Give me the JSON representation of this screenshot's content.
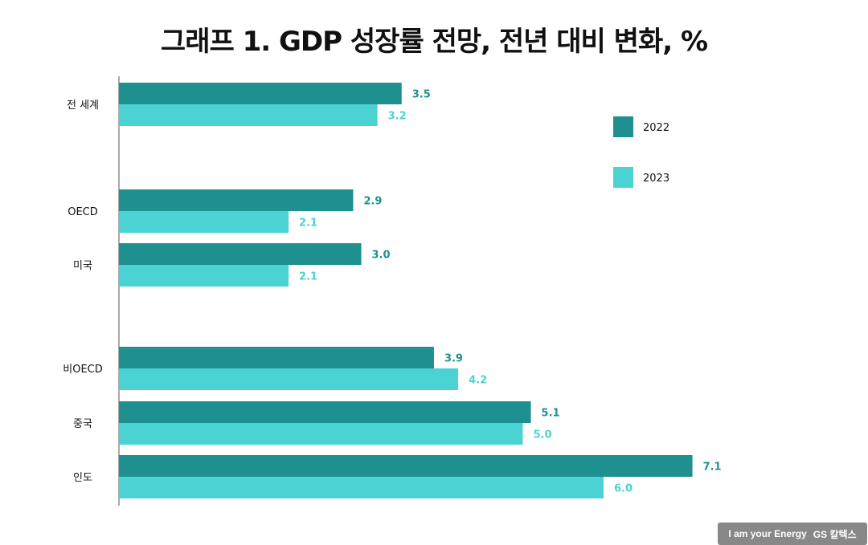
{
  "chart_data": {
    "type": "bar",
    "orientation": "horizontal",
    "title": "그래프 1. GDP 성장률 전망, 전년 대비 변화, %",
    "categories": [
      "전 세계",
      "OECD",
      "미국",
      "비OECD",
      "중국",
      "인도"
    ],
    "series": [
      {
        "name": "2022",
        "values": [
          3.5,
          2.9,
          3.0,
          3.9,
          5.1,
          7.1
        ],
        "labels": [
          "3.5",
          "2.9",
          "3.0",
          "3.9",
          "5.1",
          "7.1"
        ],
        "color": "#1f9090"
      },
      {
        "name": "2023",
        "values": [
          3.2,
          2.1,
          2.1,
          4.2,
          5.0,
          6.0
        ],
        "labels": [
          "3.2",
          "2.1",
          "2.1",
          "4.2",
          "5.0",
          "6.0"
        ],
        "color": "#4bd3d3"
      }
    ],
    "xlim": [
      0,
      7.1
    ],
    "grid": false,
    "legend_position": "top-right"
  },
  "footer": {
    "slogan": "I am your Energy",
    "brand": "GS 칼텍스"
  }
}
